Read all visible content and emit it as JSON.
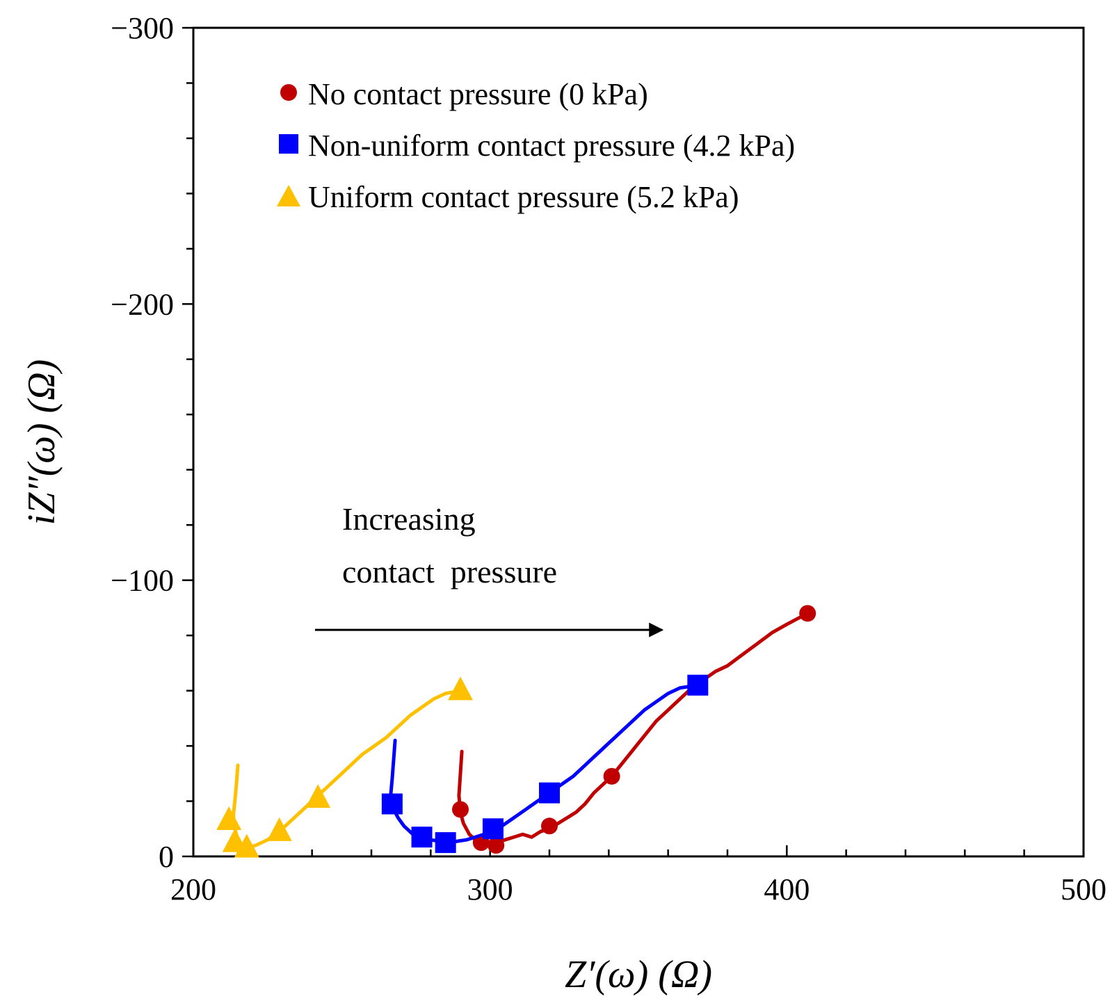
{
  "chart_data": {
    "type": "scatter",
    "xlabel": "Z′(ω) (Ω)",
    "ylabel": "iZ″(ω) (Ω)",
    "xlim": [
      200,
      500
    ],
    "ylim": [
      0,
      -300
    ],
    "y_inverted": true,
    "x_ticks": [
      200,
      300,
      400,
      500
    ],
    "y_ticks": [
      0,
      -100,
      -200,
      -300
    ],
    "x_tick_labels": [
      "200",
      "300",
      "400",
      "500"
    ],
    "y_tick_labels": [
      "0",
      "−100",
      "−200",
      "−300"
    ],
    "x_minor_step": 20,
    "y_minor_step": 20,
    "grid": false,
    "legend_position": "top-left",
    "series": [
      {
        "name": "No contact pressure (0 kPa)",
        "color": "#c00000",
        "marker": "circle",
        "line": [
          [
            290.5,
            -38
          ],
          [
            290,
            -30
          ],
          [
            289.5,
            -22
          ],
          [
            290,
            -16
          ],
          [
            291,
            -12
          ],
          [
            293,
            -8
          ],
          [
            296,
            -5
          ],
          [
            299,
            -4
          ],
          [
            302,
            -5
          ],
          [
            305,
            -6
          ],
          [
            308,
            -7
          ],
          [
            311,
            -8
          ],
          [
            314,
            -7
          ],
          [
            317,
            -9
          ],
          [
            320,
            -10
          ],
          [
            323,
            -12
          ],
          [
            326,
            -14
          ],
          [
            329,
            -16
          ],
          [
            332,
            -19
          ],
          [
            335,
            -23
          ],
          [
            338,
            -26
          ],
          [
            341,
            -29
          ],
          [
            344,
            -33
          ],
          [
            347,
            -37
          ],
          [
            350,
            -41
          ],
          [
            353,
            -45
          ],
          [
            356,
            -49
          ],
          [
            360,
            -53
          ],
          [
            364,
            -57
          ],
          [
            368,
            -61
          ],
          [
            372,
            -64
          ],
          [
            376,
            -67
          ],
          [
            380,
            -69
          ],
          [
            385,
            -73
          ],
          [
            390,
            -77
          ],
          [
            395,
            -81
          ],
          [
            400,
            -84
          ],
          [
            407,
            -88
          ]
        ],
        "markers": [
          [
            290,
            -17
          ],
          [
            297,
            -5
          ],
          [
            302,
            -4
          ],
          [
            320,
            -11
          ],
          [
            341,
            -29
          ],
          [
            407,
            -88
          ]
        ]
      },
      {
        "name": "Non-uniform contact pressure (4.2 kPa)",
        "color": "#0000ff",
        "marker": "square",
        "line": [
          [
            268,
            -42
          ],
          [
            267.5,
            -35
          ],
          [
            267,
            -28
          ],
          [
            266.5,
            -22
          ],
          [
            267,
            -18
          ],
          [
            269,
            -14
          ],
          [
            271,
            -11
          ],
          [
            274,
            -8
          ],
          [
            277,
            -7
          ],
          [
            280,
            -6
          ],
          [
            283,
            -5.5
          ],
          [
            286,
            -5
          ],
          [
            289,
            -5.5
          ],
          [
            292,
            -6
          ],
          [
            295,
            -7
          ],
          [
            298,
            -8
          ],
          [
            301,
            -9.5
          ],
          [
            304,
            -11
          ],
          [
            308,
            -14
          ],
          [
            312,
            -17
          ],
          [
            316,
            -20
          ],
          [
            320,
            -23
          ],
          [
            324,
            -26
          ],
          [
            328,
            -29
          ],
          [
            331,
            -32
          ],
          [
            334,
            -35
          ],
          [
            337,
            -38
          ],
          [
            340,
            -41
          ],
          [
            344,
            -45
          ],
          [
            348,
            -49
          ],
          [
            352,
            -53
          ],
          [
            356,
            -56
          ],
          [
            360,
            -59
          ],
          [
            364,
            -61
          ],
          [
            370,
            -62
          ]
        ],
        "markers": [
          [
            267,
            -19
          ],
          [
            277,
            -7
          ],
          [
            285,
            -5
          ],
          [
            301,
            -10
          ],
          [
            320,
            -23
          ],
          [
            370,
            -62
          ]
        ]
      },
      {
        "name": "Uniform contact pressure (5.2 kPa)",
        "color": "#ffc000",
        "marker": "triangle",
        "line": [
          [
            215,
            -33
          ],
          [
            214.5,
            -26
          ],
          [
            214,
            -20
          ],
          [
            213.5,
            -15
          ],
          [
            214,
            -10
          ],
          [
            215,
            -6
          ],
          [
            216,
            -4
          ],
          [
            218,
            -3
          ],
          [
            221,
            -4
          ],
          [
            225,
            -6
          ],
          [
            229,
            -9
          ],
          [
            233,
            -13
          ],
          [
            237,
            -17
          ],
          [
            241,
            -21
          ],
          [
            245,
            -25
          ],
          [
            249,
            -29
          ],
          [
            253,
            -33
          ],
          [
            257,
            -37
          ],
          [
            261,
            -40
          ],
          [
            265,
            -43
          ],
          [
            269,
            -47
          ],
          [
            273,
            -51
          ],
          [
            277,
            -54
          ],
          [
            281,
            -57
          ],
          [
            285,
            -59
          ],
          [
            290,
            -60
          ]
        ],
        "markers": [
          [
            212,
            -13
          ],
          [
            214,
            -5
          ],
          [
            218,
            -3
          ],
          [
            229,
            -9
          ],
          [
            242,
            -21
          ],
          [
            290,
            -60
          ]
        ]
      }
    ],
    "annotation": {
      "lines": [
        "Increasing",
        "contact  pressure"
      ],
      "arrow_from": [
        241,
        -82
      ],
      "arrow_to": [
        358,
        -82
      ]
    }
  }
}
